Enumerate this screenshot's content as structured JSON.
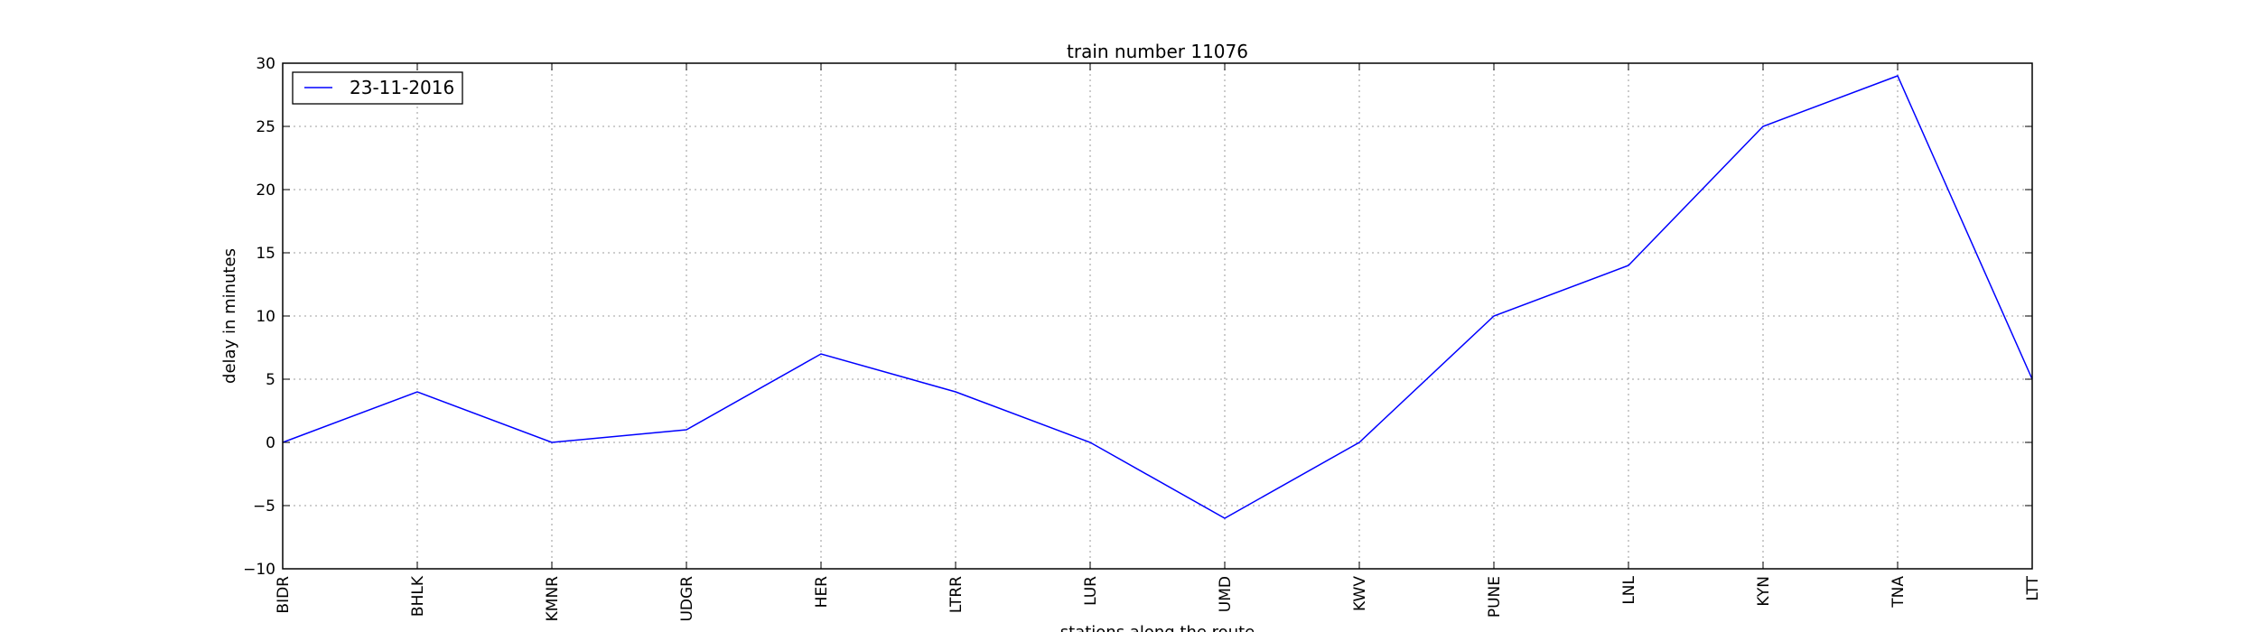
{
  "chart_data": {
    "type": "line",
    "title": "train number 11076",
    "xlabel": "stations along the route",
    "ylabel": "delay in minutes",
    "categories": [
      "BIDR",
      "BHLK",
      "KMNR",
      "UDGR",
      "HER",
      "LTRR",
      "LUR",
      "UMD",
      "KWV",
      "PUNE",
      "LNL",
      "KYN",
      "TNA",
      "LTT"
    ],
    "series": [
      {
        "name": "23-11-2016",
        "color": "#0000ff",
        "values": [
          0,
          4,
          0,
          1,
          7,
          4,
          0,
          -6,
          0,
          10,
          14,
          25,
          29,
          5
        ]
      }
    ],
    "ylim": [
      -10,
      30
    ],
    "yticks": [
      -10,
      -5,
      0,
      5,
      10,
      15,
      20,
      25,
      30
    ],
    "ytick_labels": [
      "−10",
      "−5",
      "0",
      "5",
      "10",
      "15",
      "20",
      "25",
      "30"
    ],
    "grid": true,
    "legend_position": "upper-left"
  }
}
